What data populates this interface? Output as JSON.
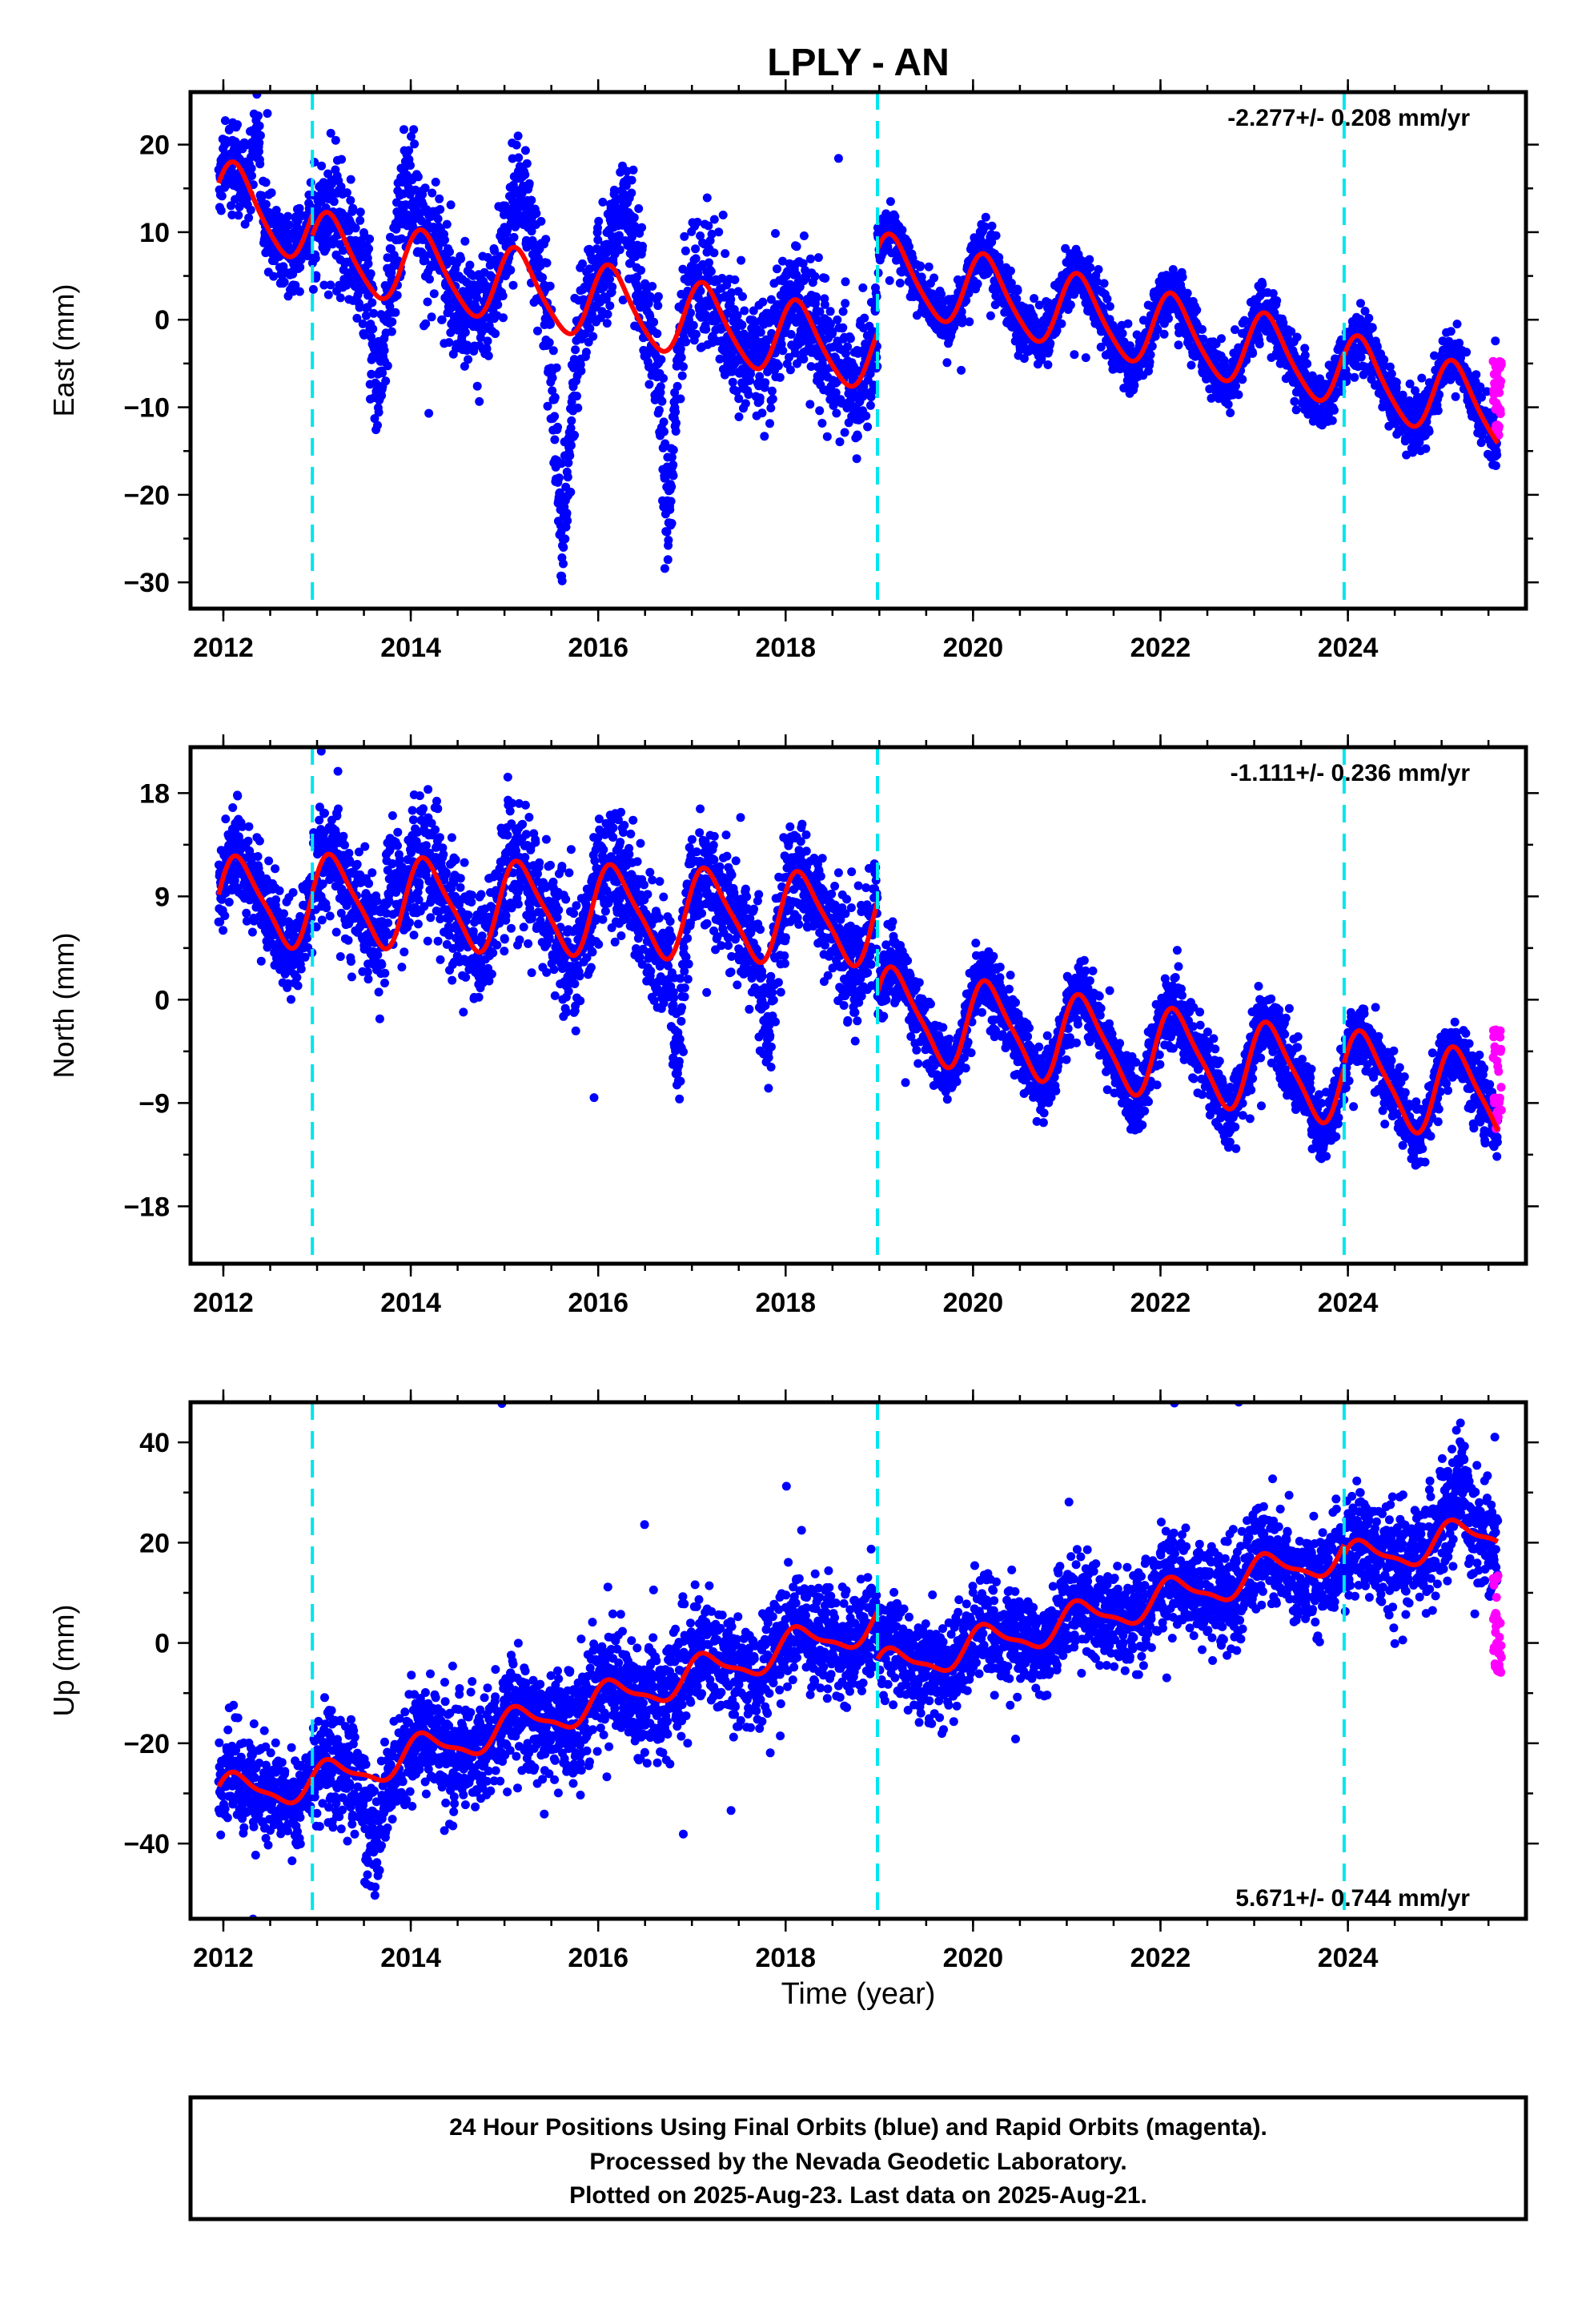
{
  "title": "LPLY - AN",
  "xlabel": "Time (year)",
  "caption_lines": [
    "24 Hour Positions Using Final Orbits (blue) and Rapid Orbits (magenta).",
    "Processed by the Nevada Geodetic Laboratory.",
    "Plotted on 2025-Aug-23. Last data on 2025-Aug-21."
  ],
  "colors": {
    "final": "#0000ff",
    "rapid": "#ff00ff",
    "model": "#ff0000",
    "steps": "#00e5ee",
    "frame": "#000000"
  },
  "chart_data": [
    {
      "type": "scatter",
      "ylabel": "East (mm)",
      "rate_label": "-2.277+/- 0.208 mm/yr",
      "rate_position": "top-right",
      "xlim": [
        2011.65,
        2025.9
      ],
      "ylim": [
        -33,
        26
      ],
      "x_ticks": [
        2012,
        2014,
        2016,
        2018,
        2020,
        2022,
        2024
      ],
      "x_tick_labels": [
        "2012",
        "2014",
        "2016",
        "2018",
        "2020",
        "2022",
        "2024"
      ],
      "y_ticks": [
        -30,
        -20,
        -10,
        0,
        10,
        20
      ],
      "y_tick_labels": [
        "−30",
        "−20",
        "−10",
        "0",
        "10",
        "20"
      ],
      "step_lines": [
        2012.95,
        2018.98,
        2023.96
      ],
      "trend_segments": [
        {
          "t0": 2011.95,
          "t1": 2012.95,
          "a": 14.0,
          "b": -3.6
        },
        {
          "t0": 2012.95,
          "t1": 2018.98,
          "a": 8.0,
          "b": -2.0
        },
        {
          "t0": 2018.98,
          "t1": 2023.96,
          "a": 5.5,
          "b": -2.25
        },
        {
          "t0": 2023.96,
          "t1": 2025.6,
          "a": -6.0,
          "b": -2.8
        }
      ],
      "seasonal": {
        "amp_cos": 2.6,
        "amp_sin": 3.3,
        "amp_cos2": 0.5,
        "amp_sin2": 0.4
      },
      "noise_sd": [
        2.2,
        3.6,
        1.6,
        1.7
      ],
      "excursions": [
        {
          "t": 2013.65,
          "w": 0.07,
          "d": -10
        },
        {
          "t": 2015.62,
          "w": 0.1,
          "d": -22
        },
        {
          "t": 2016.75,
          "w": 0.07,
          "d": -20
        },
        {
          "t": 2013.95,
          "w": 0.12,
          "d": 8
        },
        {
          "t": 2015.2,
          "w": 0.12,
          "d": 8
        },
        {
          "t": 2016.3,
          "w": 0.15,
          "d": 9
        },
        {
          "t": 2012.35,
          "w": 0.05,
          "d": 9
        }
      ],
      "rapid": {
        "t0": 2025.55,
        "t1": 2025.64,
        "center": -9.5,
        "spread": 5
      }
    },
    {
      "type": "scatter",
      "ylabel": "North (mm)",
      "rate_label": "-1.111+/- 0.236 mm/yr",
      "rate_position": "top-right",
      "xlim": [
        2011.65,
        2025.9
      ],
      "ylim": [
        -23,
        22
      ],
      "x_ticks": [
        2012,
        2014,
        2016,
        2018,
        2020,
        2022,
        2024
      ],
      "x_tick_labels": [
        "2012",
        "2014",
        "2016",
        "2018",
        "2020",
        "2022",
        "2024"
      ],
      "y_ticks": [
        -18,
        -9,
        0,
        9,
        18
      ],
      "y_tick_labels": [
        "−18",
        "−9",
        "0",
        "9",
        "18"
      ],
      "step_lines": [
        2012.95,
        2018.98,
        2023.96
      ],
      "trend_segments": [
        {
          "t0": 2011.95,
          "t1": 2012.95,
          "a": 8.5,
          "b": 0.0
        },
        {
          "t0": 2012.95,
          "t1": 2018.98,
          "a": 8.7,
          "b": -0.3
        },
        {
          "t0": 2018.98,
          "t1": 2023.96,
          "a": -1.0,
          "b": -1.2
        },
        {
          "t0": 2023.96,
          "t1": 2025.6,
          "a": -6.5,
          "b": -1.4
        }
      ],
      "seasonal": {
        "amp_cos": 1.6,
        "amp_sin": 3.4,
        "amp_cos2": 0.6,
        "amp_sin2": 0.5
      },
      "noise_sd": [
        2.0,
        2.6,
        1.5,
        1.4
      ],
      "excursions": [
        {
          "t": 2016.85,
          "w": 0.06,
          "d": -10
        },
        {
          "t": 2013.8,
          "w": 0.08,
          "d": 6
        },
        {
          "t": 2017.8,
          "w": 0.06,
          "d": -7
        }
      ],
      "rapid": {
        "t0": 2025.55,
        "t1": 2025.64,
        "center": -6.5,
        "spread": 5
      }
    },
    {
      "type": "scatter",
      "ylabel": "Up (mm)",
      "rate_label": "5.671+/- 0.744 mm/yr",
      "rate_position": "bottom-right",
      "xlim": [
        2011.65,
        2025.9
      ],
      "ylim": [
        -55,
        48
      ],
      "x_ticks": [
        2012,
        2014,
        2016,
        2018,
        2020,
        2022,
        2024
      ],
      "x_tick_labels": [
        "2012",
        "2014",
        "2016",
        "2018",
        "2020",
        "2022",
        "2024"
      ],
      "y_ticks": [
        -40,
        -20,
        0,
        20,
        40
      ],
      "y_tick_labels": [
        "−40",
        "−20",
        "0",
        "20",
        "40"
      ],
      "step_lines": [
        2012.95,
        2018.98,
        2023.96
      ],
      "trend_segments": [
        {
          "t0": 2011.95,
          "t1": 2012.95,
          "a": -30.0,
          "b": 2.0
        },
        {
          "t0": 2012.95,
          "t1": 2018.98,
          "a": -28.0,
          "b": 5.3
        },
        {
          "t0": 2018.98,
          "t1": 2023.96,
          "a": -5.5,
          "b": 4.7
        },
        {
          "t0": 2023.96,
          "t1": 2025.6,
          "a": 16.0,
          "b": 4.0
        }
      ],
      "seasonal": {
        "amp_cos": 2.0,
        "amp_sin": 2.6,
        "amp_cos2": 0.8,
        "amp_sin2": 0.6
      },
      "noise_sd": [
        4.5,
        5.6,
        5.0,
        5.2
      ],
      "excursions": [
        {
          "t": 2013.6,
          "w": 0.12,
          "d": -12
        },
        {
          "t": 2025.2,
          "w": 0.08,
          "d": 10
        }
      ],
      "rapid": {
        "t0": 2025.55,
        "t1": 2025.64,
        "center": 3,
        "spread": 12
      }
    }
  ]
}
